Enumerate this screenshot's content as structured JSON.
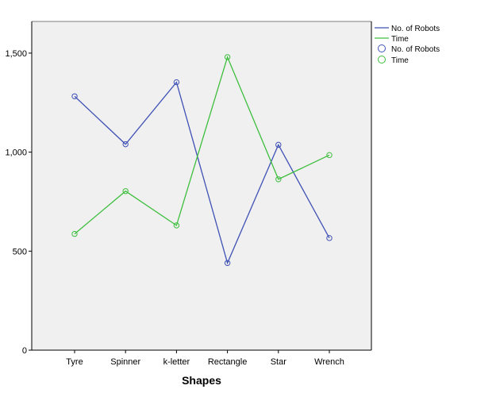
{
  "chart_data": {
    "type": "line",
    "categories": [
      "Tyre",
      "Spinner",
      "k-letter",
      "Rectangle",
      "Star",
      "Wrench"
    ],
    "series": [
      {
        "name": "No. of Robots",
        "values": [
          1282,
          1040,
          1353,
          440,
          1037,
          566
        ],
        "color": "#3F51B5"
      },
      {
        "name": "Time",
        "values": [
          587,
          803,
          630,
          1480,
          863,
          985
        ],
        "color": "#3DBE3D"
      }
    ],
    "xlabel": "Shapes",
    "ylabel": "",
    "ylim": [
      0,
      1660
    ],
    "yticks": [
      0,
      500,
      1000,
      1500
    ],
    "ytick_labels": [
      "0",
      "500",
      "1,000",
      "1,500"
    ],
    "grid": false,
    "legend": {
      "placement": "right-top",
      "line_entries": [
        "No. of Robots",
        "Time"
      ],
      "marker_entries": [
        "No. of Robots",
        "Time"
      ]
    },
    "plot_background": "#F0F0F0"
  }
}
